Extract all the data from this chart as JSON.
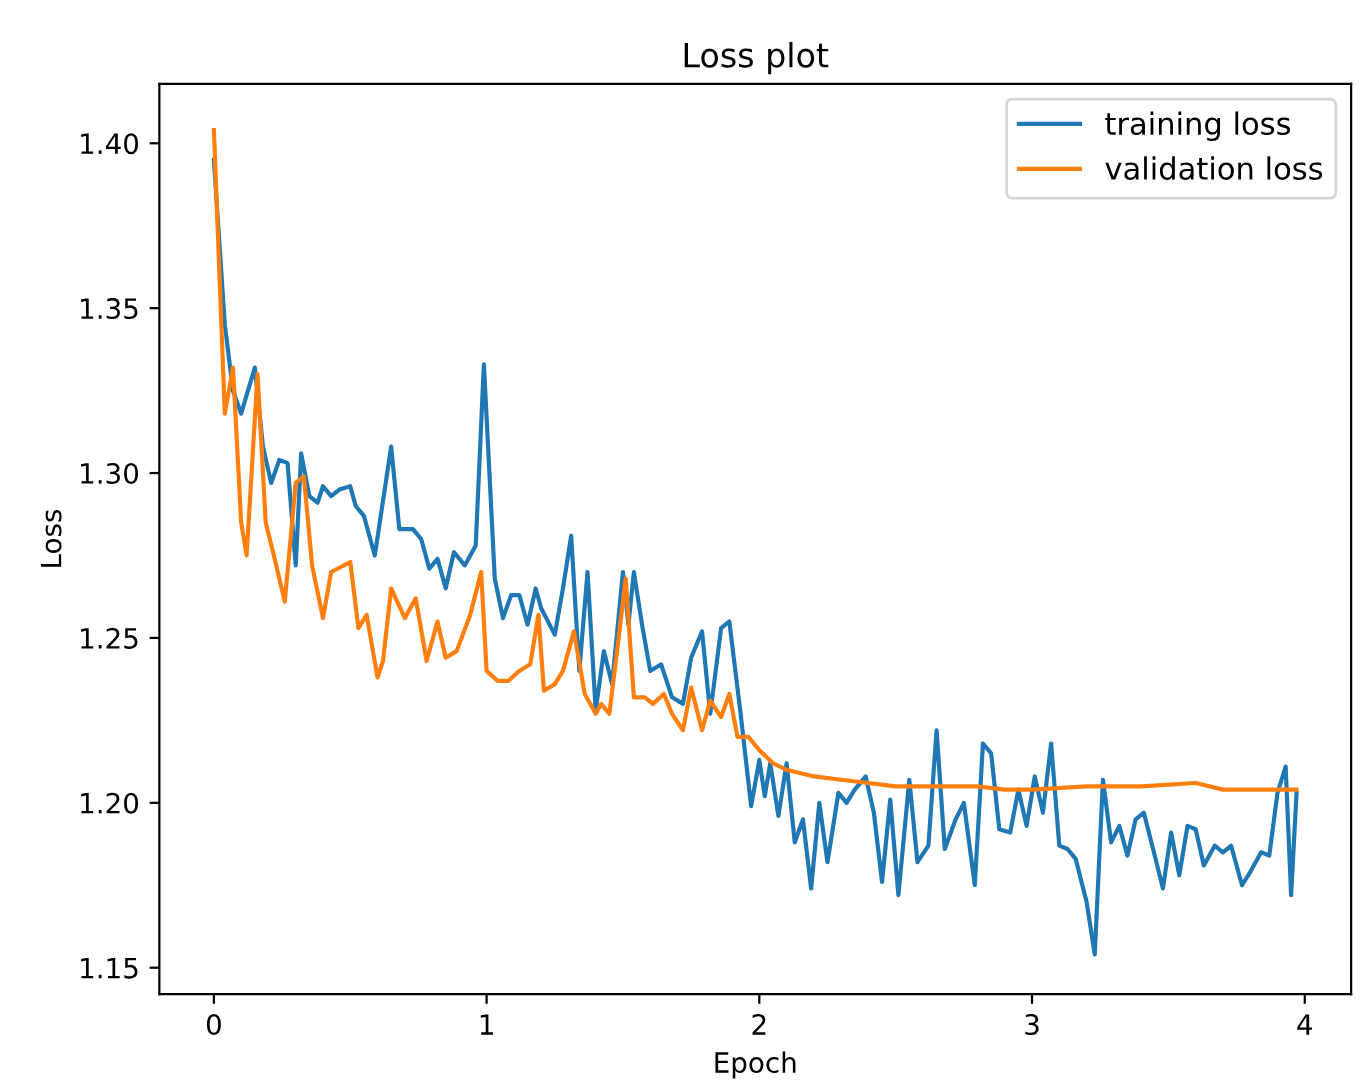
{
  "chart_data": {
    "type": "line",
    "title": "Loss plot",
    "xlabel": "Epoch",
    "ylabel": "Loss",
    "legend": "top right",
    "grid": false,
    "xlim": [
      -0.2,
      4.17
    ],
    "ylim": [
      1.142,
      1.418
    ],
    "xticks": [
      0,
      1,
      2,
      3,
      4
    ],
    "yticks": [
      {
        "value": 1.15,
        "label": "1.15"
      },
      {
        "value": 1.2,
        "label": "1.20"
      },
      {
        "value": 1.25,
        "label": "1.25"
      },
      {
        "value": 1.3,
        "label": "1.30"
      },
      {
        "value": 1.35,
        "label": "1.35"
      },
      {
        "value": 1.4,
        "label": "1.40"
      }
    ],
    "series": [
      {
        "name": "training loss",
        "color": "#1f77b4",
        "x": [
          0.0,
          0.04,
          0.07,
          0.1,
          0.15,
          0.18,
          0.21,
          0.24,
          0.27,
          0.3,
          0.32,
          0.35,
          0.38,
          0.4,
          0.43,
          0.46,
          0.5,
          0.52,
          0.55,
          0.59,
          0.65,
          0.68,
          0.73,
          0.76,
          0.79,
          0.82,
          0.85,
          0.88,
          0.92,
          0.96,
          0.99,
          1.03,
          1.06,
          1.09,
          1.12,
          1.15,
          1.18,
          1.2,
          1.25,
          1.28,
          1.31,
          1.34,
          1.37,
          1.4,
          1.43,
          1.46,
          1.5,
          1.52,
          1.54,
          1.57,
          1.6,
          1.64,
          1.68,
          1.72,
          1.75,
          1.79,
          1.82,
          1.86,
          1.89,
          1.93,
          1.97,
          2.0,
          2.02,
          2.04,
          2.07,
          2.1,
          2.13,
          2.16,
          2.19,
          2.22,
          2.25,
          2.29,
          2.32,
          2.35,
          2.39,
          2.42,
          2.45,
          2.48,
          2.51,
          2.55,
          2.58,
          2.62,
          2.65,
          2.68,
          2.72,
          2.75,
          2.79,
          2.82,
          2.85,
          2.88,
          2.92,
          2.95,
          2.98,
          3.01,
          3.04,
          3.07,
          3.1,
          3.13,
          3.16,
          3.2,
          3.23,
          3.26,
          3.29,
          3.32,
          3.35,
          3.38,
          3.41,
          3.45,
          3.48,
          3.51,
          3.54,
          3.57,
          3.6,
          3.63,
          3.67,
          3.7,
          3.73,
          3.77,
          3.8,
          3.84,
          3.87,
          3.9,
          3.93,
          3.95,
          3.97
        ],
        "values": [
          1.395,
          1.345,
          1.325,
          1.318,
          1.332,
          1.308,
          1.297,
          1.304,
          1.303,
          1.272,
          1.306,
          1.293,
          1.291,
          1.296,
          1.293,
          1.295,
          1.296,
          1.29,
          1.287,
          1.275,
          1.308,
          1.283,
          1.283,
          1.28,
          1.271,
          1.274,
          1.265,
          1.276,
          1.272,
          1.278,
          1.333,
          1.268,
          1.256,
          1.263,
          1.263,
          1.254,
          1.265,
          1.259,
          1.251,
          1.265,
          1.281,
          1.24,
          1.27,
          1.228,
          1.246,
          1.236,
          1.27,
          1.254,
          1.27,
          1.254,
          1.24,
          1.242,
          1.232,
          1.23,
          1.244,
          1.252,
          1.227,
          1.253,
          1.255,
          1.228,
          1.199,
          1.213,
          1.202,
          1.212,
          1.196,
          1.212,
          1.188,
          1.195,
          1.174,
          1.2,
          1.182,
          1.203,
          1.2,
          1.204,
          1.208,
          1.197,
          1.176,
          1.201,
          1.172,
          1.207,
          1.182,
          1.187,
          1.222,
          1.186,
          1.195,
          1.2,
          1.175,
          1.218,
          1.215,
          1.192,
          1.191,
          1.204,
          1.193,
          1.208,
          1.197,
          1.218,
          1.187,
          1.186,
          1.183,
          1.17,
          1.154,
          1.207,
          1.188,
          1.193,
          1.184,
          1.195,
          1.197,
          1.184,
          1.174,
          1.191,
          1.178,
          1.193,
          1.192,
          1.181,
          1.187,
          1.185,
          1.187,
          1.175,
          1.179,
          1.185,
          1.184,
          1.203,
          1.211,
          1.172,
          1.203
        ]
      },
      {
        "name": "validation loss",
        "color": "#ff7f0e",
        "x": [
          0.0,
          0.04,
          0.07,
          0.1,
          0.12,
          0.16,
          0.19,
          0.22,
          0.26,
          0.3,
          0.33,
          0.36,
          0.4,
          0.43,
          0.5,
          0.53,
          0.56,
          0.6,
          0.62,
          0.65,
          0.7,
          0.74,
          0.78,
          0.82,
          0.85,
          0.89,
          0.94,
          0.98,
          1.0,
          1.04,
          1.08,
          1.12,
          1.16,
          1.19,
          1.21,
          1.25,
          1.28,
          1.32,
          1.36,
          1.4,
          1.42,
          1.45,
          1.48,
          1.51,
          1.54,
          1.58,
          1.61,
          1.65,
          1.68,
          1.72,
          1.75,
          1.79,
          1.82,
          1.86,
          1.89,
          1.92,
          1.96,
          2.0,
          2.05,
          2.1,
          2.2,
          2.3,
          2.4,
          2.5,
          2.6,
          2.7,
          2.8,
          2.9,
          3.0,
          3.2,
          3.4,
          3.6,
          3.7,
          3.8,
          3.97
        ],
        "values": [
          1.404,
          1.318,
          1.332,
          1.285,
          1.275,
          1.33,
          1.285,
          1.275,
          1.261,
          1.297,
          1.299,
          1.272,
          1.256,
          1.27,
          1.273,
          1.253,
          1.257,
          1.238,
          1.243,
          1.265,
          1.256,
          1.262,
          1.243,
          1.255,
          1.244,
          1.246,
          1.257,
          1.27,
          1.24,
          1.237,
          1.237,
          1.24,
          1.242,
          1.257,
          1.234,
          1.236,
          1.24,
          1.252,
          1.233,
          1.227,
          1.23,
          1.227,
          1.247,
          1.268,
          1.232,
          1.232,
          1.23,
          1.233,
          1.227,
          1.222,
          1.235,
          1.222,
          1.231,
          1.226,
          1.233,
          1.22,
          1.22,
          1.216,
          1.212,
          1.21,
          1.208,
          1.207,
          1.206,
          1.205,
          1.205,
          1.205,
          1.205,
          1.204,
          1.204,
          1.205,
          1.205,
          1.206,
          1.204,
          1.204,
          1.204
        ]
      }
    ]
  }
}
